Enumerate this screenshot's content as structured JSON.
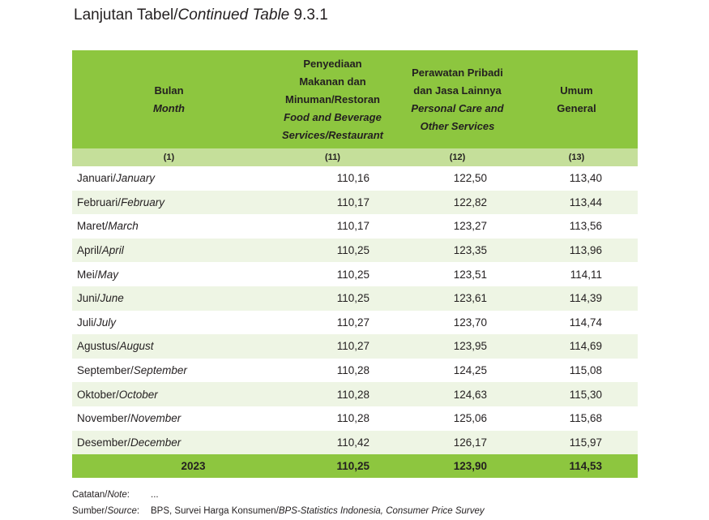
{
  "title": {
    "id": "Lanjutan Tabel/",
    "en": "Continued Table",
    "number": " 9.3.1"
  },
  "table": {
    "columns": [
      {
        "id_lines": [
          "Bulan"
        ],
        "en_lines": [
          "Month"
        ],
        "num": "(1)"
      },
      {
        "id_lines": [
          "Penyediaan",
          "Makanan dan",
          "Minuman/Restoran"
        ],
        "en_lines": [
          "Food and Beverage",
          "Services/Restaurant"
        ],
        "num": "(11)"
      },
      {
        "id_lines": [
          "Perawatan Pribadi",
          "dan Jasa Lainnya"
        ],
        "en_lines": [
          "Personal Care and",
          "Other Services"
        ],
        "num": "(12)"
      },
      {
        "id_lines": [
          "Umum",
          "General"
        ],
        "en_lines": [],
        "num": "(13)"
      }
    ],
    "rows": [
      {
        "id": "Januari/",
        "en": "January",
        "v": [
          "110,16",
          "122,50",
          "113,40"
        ]
      },
      {
        "id": "Februari/",
        "en": "February",
        "v": [
          "110,17",
          "122,82",
          "113,44"
        ]
      },
      {
        "id": "Maret/",
        "en": "March",
        "v": [
          "110,17",
          "123,27",
          "113,56"
        ]
      },
      {
        "id": "April/",
        "en": "April",
        "v": [
          "110,25",
          "123,35",
          "113,96"
        ]
      },
      {
        "id": "Mei/",
        "en": "May",
        "v": [
          "110,25",
          "123,51",
          "114,11"
        ]
      },
      {
        "id": "Juni/",
        "en": "June",
        "v": [
          "110,25",
          "123,61",
          "114,39"
        ]
      },
      {
        "id": "Juli/",
        "en": "July",
        "v": [
          "110,27",
          "123,70",
          "114,74"
        ]
      },
      {
        "id": "Agustus/",
        "en": "August",
        "v": [
          "110,27",
          "123,95",
          "114,69"
        ]
      },
      {
        "id": "September/",
        "en": "September",
        "v": [
          "110,28",
          "124,25",
          "115,08"
        ]
      },
      {
        "id": "Oktober/",
        "en": "October",
        "v": [
          "110,28",
          "124,63",
          "115,30"
        ]
      },
      {
        "id": "November/",
        "en": "November",
        "v": [
          "110,28",
          "125,06",
          "115,68"
        ]
      },
      {
        "id": "Desember/",
        "en": "December",
        "v": [
          "110,42",
          "126,17",
          "115,97"
        ]
      }
    ],
    "total": {
      "label": "2023",
      "v": [
        "110,25",
        "123,90",
        "114,53"
      ]
    }
  },
  "notes": {
    "note_label_id": "Catatan/",
    "note_label_en": "Note",
    "note_label_colon": ":",
    "note_text": "...",
    "source_label_id": "Sumber/",
    "source_label_en": "Source",
    "source_label_colon": ":",
    "source_text_id": "BPS, Survei Harga Konsumen/",
    "source_text_en": "BPS-Statistics Indonesia, Consumer Price Survey"
  },
  "colors": {
    "header_green": "#8dc63f",
    "number_row_green": "#c5df9a",
    "stripe_green": "#eef5e4"
  }
}
